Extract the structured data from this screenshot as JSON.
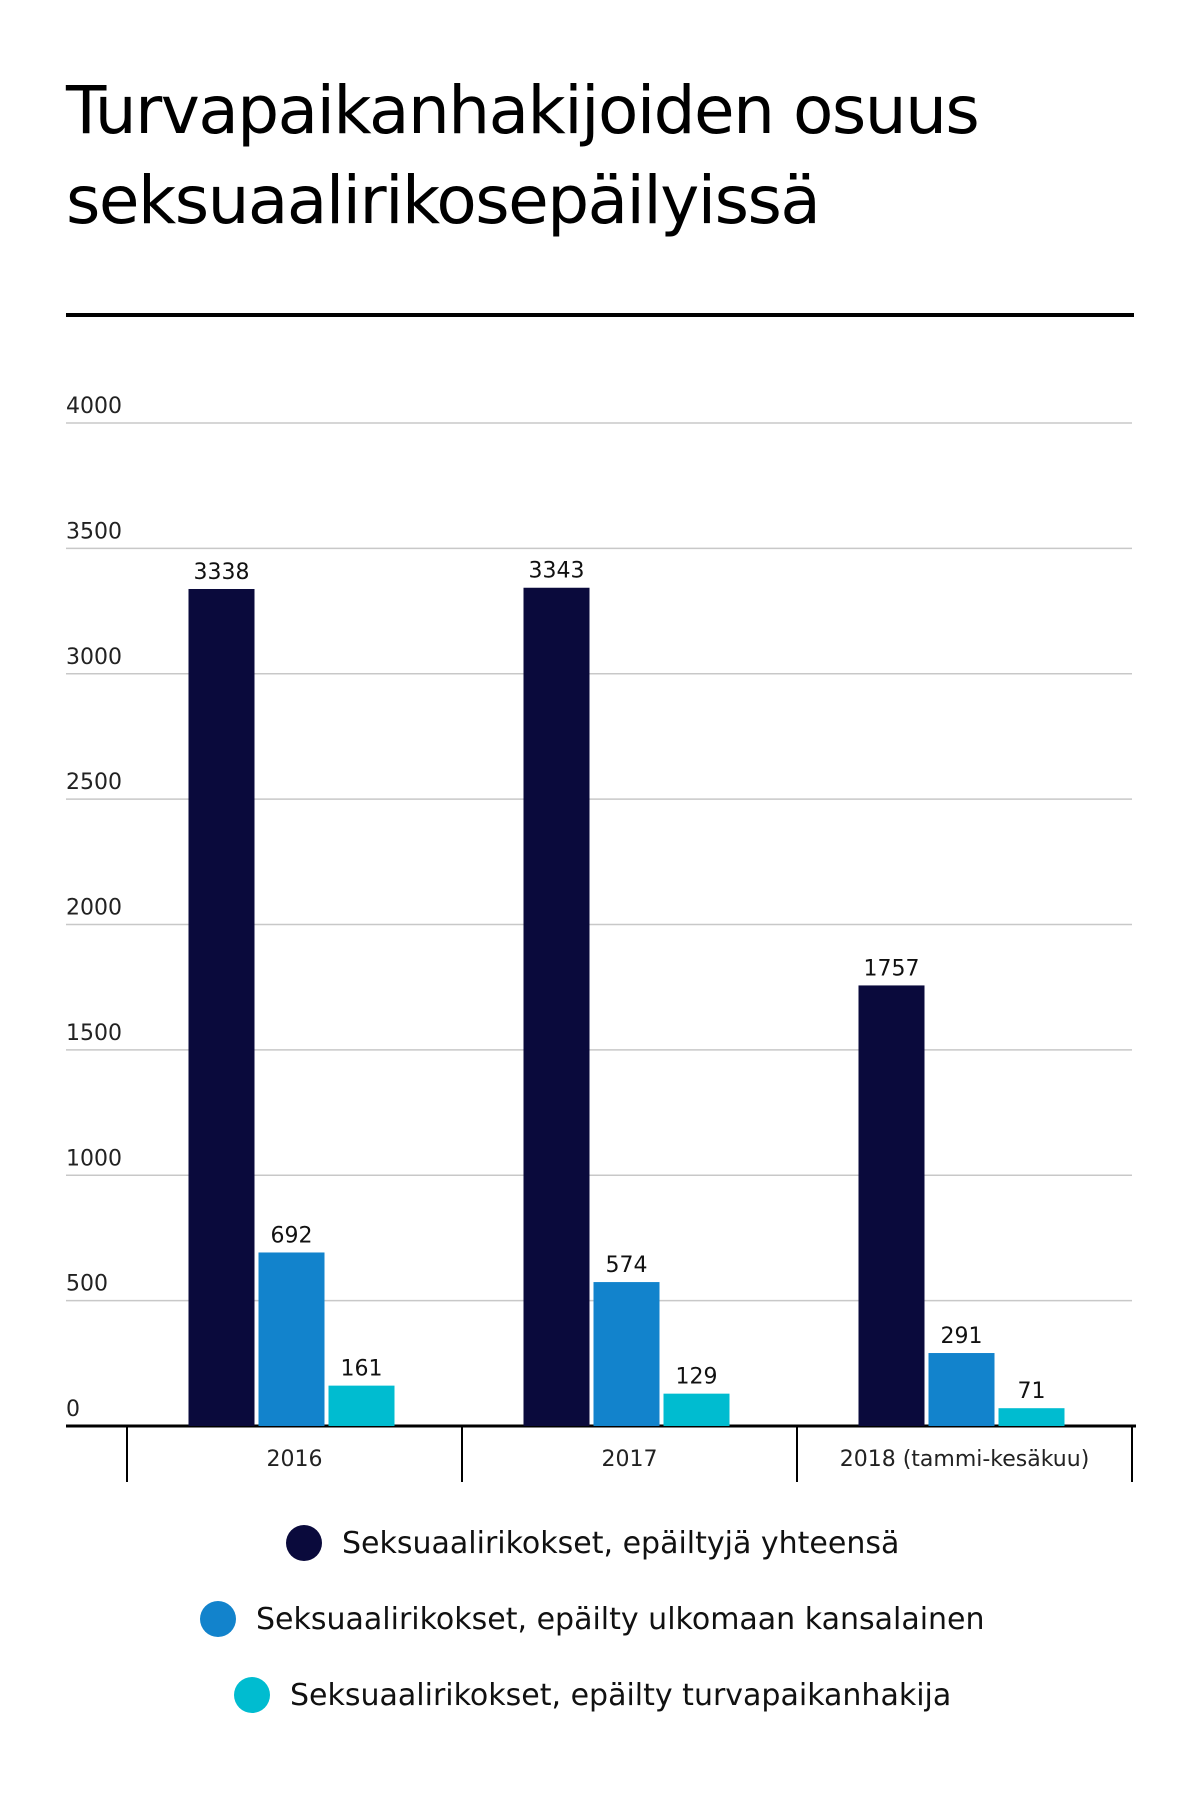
{
  "title_line1": "Turvapaikanhakijoiden osuus",
  "title_line2": "seksuaalirikosepäilyissä",
  "chart_data": {
    "type": "bar",
    "title": "Turvapaikanhakijoiden osuus seksuaalirikosepäilyissä",
    "categories": [
      "2016",
      "2017",
      "2018 (tammi-kesäkuu)"
    ],
    "series": [
      {
        "name": "Seksuaalirikokset, epäiltyjä yhteensä",
        "values": [
          3338,
          3343,
          1757
        ],
        "color": "#0a0a3c"
      },
      {
        "name": "Seksuaalirikokset, epäilty ulkomaan kansalainen",
        "values": [
          692,
          574,
          291
        ],
        "color": "#1283cc"
      },
      {
        "name": "Seksuaalirikokset, epäilty turvapaikanhakija",
        "values": [
          161,
          129,
          71
        ],
        "color": "#00bcd0"
      }
    ],
    "yticks": [
      0,
      500,
      1000,
      1500,
      2000,
      2500,
      3000,
      3500,
      4000
    ],
    "ylim": [
      0,
      4000
    ],
    "grid": true,
    "legend_position": "bottom",
    "data_labels": true
  }
}
